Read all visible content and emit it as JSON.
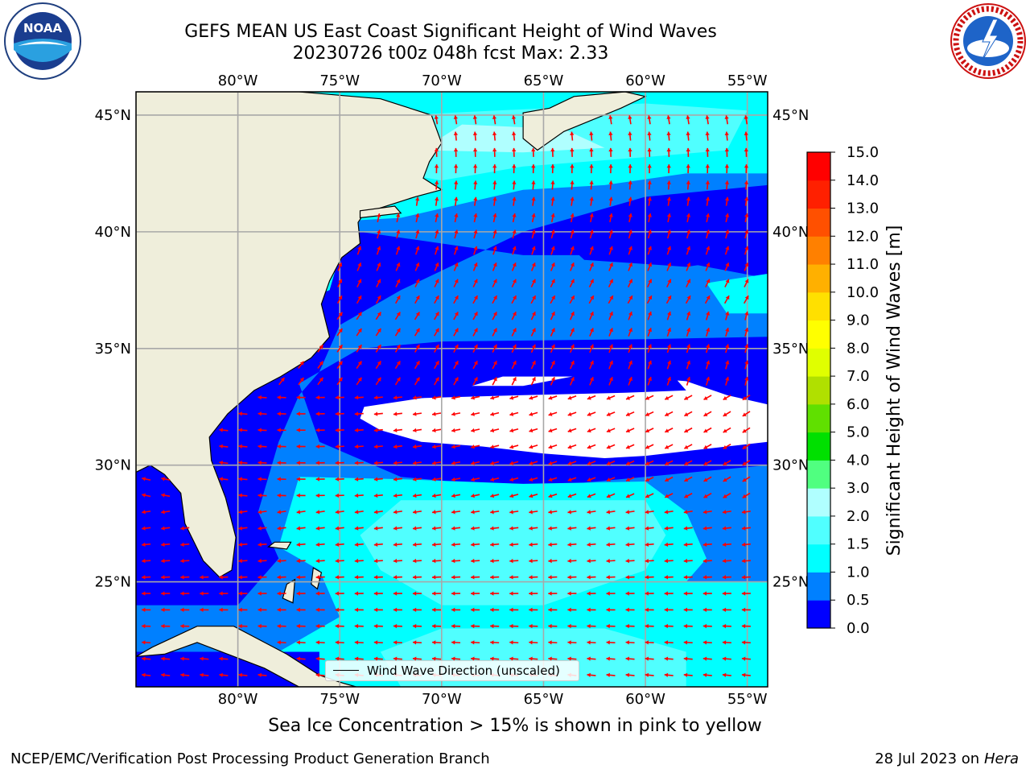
{
  "header": {
    "title_line1": "GEFS MEAN US East Coast Significant Height of Wind Waves",
    "title_line2": "20230726 t00z 048h fcst   Max: 2.33"
  },
  "logos": {
    "left": {
      "icon": "noaa-logo",
      "text": "NOAA"
    },
    "right": {
      "icon": "nws-logo"
    }
  },
  "map": {
    "projection": "lat-lon",
    "lon_range": [
      -85,
      -54
    ],
    "lat_range": [
      20.5,
      46
    ],
    "lon_ticks": [
      -80,
      -75,
      -70,
      -65,
      -60,
      -55
    ],
    "lon_tick_labels": [
      "80°W",
      "75°W",
      "70°W",
      "65°W",
      "60°W",
      "55°W"
    ],
    "lat_ticks": [
      25,
      30,
      35,
      40,
      45
    ],
    "lat_tick_labels": [
      "25°N",
      "30°N",
      "35°N",
      "40°N",
      "45°N"
    ],
    "grid": true,
    "land_color": "#efeedb",
    "arrow_color": "#ff0000"
  },
  "legend": {
    "label": "Wind Wave Direction (unscaled)",
    "placement": "bottom-center"
  },
  "colorbar": {
    "label": "Significant Height of Wind Waves [m]",
    "ticks": [
      "0.0",
      "0.5",
      "1.0",
      "1.5",
      "2.0",
      "3.0",
      "4.0",
      "5.0",
      "6.0",
      "7.0",
      "8.0",
      "9.0",
      "10.0",
      "11.0",
      "12.0",
      "13.0",
      "14.0",
      "15.0"
    ],
    "colors": [
      "#0000ff",
      "#0080ff",
      "#00ffff",
      "#50ffff",
      "#b0ffff",
      "#50ff80",
      "#00e000",
      "#60e000",
      "#b0e000",
      "#e0ff00",
      "#ffff00",
      "#ffe000",
      "#ffb000",
      "#ff8000",
      "#ff5000",
      "#ff2000",
      "#ff0000"
    ]
  },
  "footer": {
    "note": "Sea Ice Concentration > 15% is shown in pink to yellow",
    "left": "NCEP/EMC/Verification Post Processing Product Generation Branch",
    "date": "28 Jul 2023 on",
    "machine": "Hera"
  },
  "chart_data": {
    "type": "heatmap",
    "title": "GEFS MEAN US East Coast Significant Height of Wind Waves",
    "subtitle": "20230726 t00z 048h fcst   Max: 2.33",
    "variable": "Significant Height of Wind Waves [m]",
    "max_value": 2.33,
    "color_levels": [
      0.0,
      0.5,
      1.0,
      1.5,
      2.0,
      3.0,
      4.0,
      5.0,
      6.0,
      7.0,
      8.0,
      9.0,
      10.0,
      11.0,
      12.0,
      13.0,
      14.0,
      15.0
    ],
    "xlim": [
      -85,
      -54
    ],
    "ylim": [
      20.5,
      46
    ]
  }
}
